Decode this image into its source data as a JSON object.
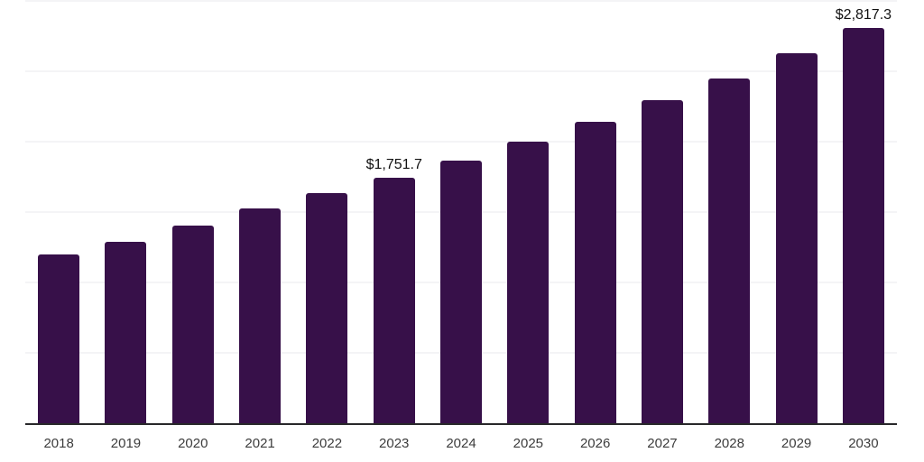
{
  "chart_data": {
    "type": "bar",
    "title": "",
    "xlabel": "",
    "ylabel": "",
    "categories": [
      "2018",
      "2019",
      "2020",
      "2021",
      "2022",
      "2023",
      "2024",
      "2025",
      "2026",
      "2027",
      "2028",
      "2029",
      "2030"
    ],
    "values": [
      1205,
      1295,
      1410,
      1530,
      1640,
      1751.7,
      1870,
      2005,
      2150,
      2300,
      2455,
      2635,
      2817.3
    ],
    "data_labels": {
      "5": "$1,751.7",
      "12": "$2,817.3"
    },
    "ylim": [
      0,
      3000
    ],
    "gridline_step": 500,
    "grid": true,
    "legend_position": "none",
    "colors": {
      "bar": "#371049",
      "gridline": "#f4f4f6",
      "axis_line": "#28282a",
      "tick_label": "#3c3c3c",
      "data_label": "#111111",
      "background": "#ffffff"
    }
  }
}
